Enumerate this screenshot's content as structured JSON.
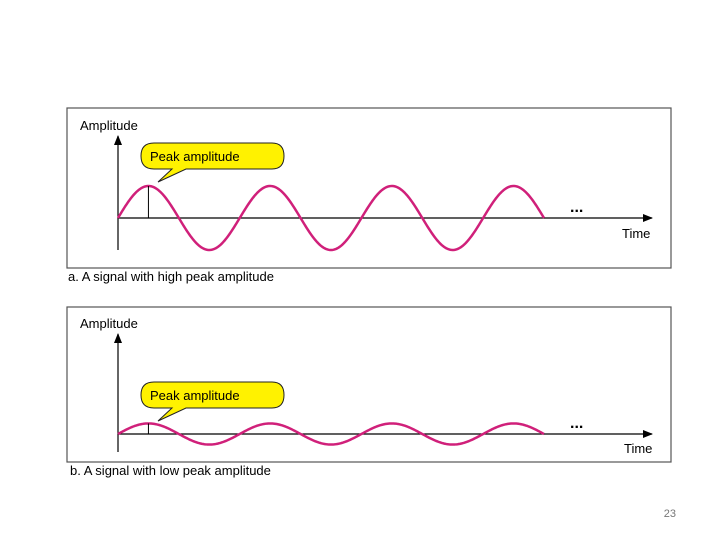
{
  "colors": {
    "signal": "#d0207a",
    "callout_fill": "#fff200",
    "frame": "#555555",
    "axis": "#000000"
  },
  "panels": [
    {
      "id": "a",
      "y_label": "Amplitude",
      "x_label": "Time",
      "callout": "Peak amplitude",
      "continuation": "...",
      "caption": "a. A signal with high peak amplitude",
      "relative_amplitude": 1.0,
      "cycles": 3.5
    },
    {
      "id": "b",
      "y_label": "Amplitude",
      "x_label": "Time",
      "callout": "Peak amplitude",
      "continuation": "...",
      "caption": "b. A signal with low peak amplitude",
      "relative_amplitude": 0.33,
      "cycles": 3.5
    }
  ],
  "page_number": "23"
}
